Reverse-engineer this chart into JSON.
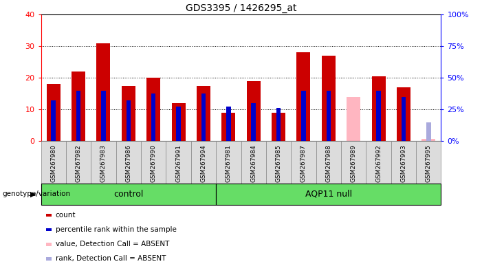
{
  "title": "GDS3395 / 1426295_at",
  "samples": [
    "GSM267980",
    "GSM267982",
    "GSM267983",
    "GSM267986",
    "GSM267990",
    "GSM267991",
    "GSM267994",
    "GSM267981",
    "GSM267984",
    "GSM267985",
    "GSM267987",
    "GSM267988",
    "GSM267989",
    "GSM267992",
    "GSM267993",
    "GSM267995"
  ],
  "count": [
    18,
    22,
    31,
    17.5,
    20,
    12,
    17.5,
    9,
    19,
    9,
    28,
    27,
    0,
    20.5,
    17,
    0.8
  ],
  "rank": [
    13,
    16,
    16,
    13,
    15,
    11,
    15,
    8,
    12,
    10.5,
    16,
    16,
    0,
    16,
    14,
    0
  ],
  "absent_value": [
    0,
    0,
    0,
    0,
    0,
    0,
    0,
    0,
    0,
    0,
    0,
    0,
    14,
    0,
    0,
    0.8
  ],
  "absent_rank": [
    0,
    0,
    0,
    0,
    0,
    0,
    0,
    0,
    0,
    0,
    0,
    0,
    0,
    0,
    0,
    6
  ],
  "extra_blue_idx": 7,
  "extra_blue_val": 11,
  "groups": [
    {
      "label": "control",
      "start": 0,
      "end": 7
    },
    {
      "label": "AQP11 null",
      "start": 7,
      "end": 16
    }
  ],
  "ylim_left": [
    0,
    40
  ],
  "ylim_right": [
    0,
    100
  ],
  "yticks_left": [
    0,
    10,
    20,
    30,
    40
  ],
  "yticks_right": [
    0,
    25,
    50,
    75,
    100
  ],
  "count_color": "#CC0000",
  "rank_color": "#0000CC",
  "absent_value_color": "#FFB6C1",
  "absent_rank_color": "#AAAADD",
  "group_color": "#66DD66",
  "bg_gray": "#DCDCDC",
  "legend_items": [
    {
      "label": "count",
      "color": "#CC0000"
    },
    {
      "label": "percentile rank within the sample",
      "color": "#0000CC"
    },
    {
      "label": "value, Detection Call = ABSENT",
      "color": "#FFB6C1"
    },
    {
      "label": "rank, Detection Call = ABSENT",
      "color": "#AAAADD"
    }
  ]
}
